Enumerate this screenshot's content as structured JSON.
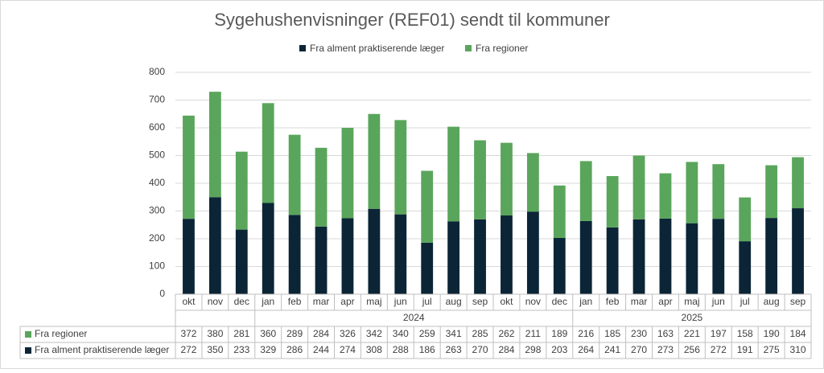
{
  "chart_data": {
    "type": "stacked_bar",
    "title": "Sygehushenvisninger (REF01) sendt til kommuner",
    "categories": [
      "okt",
      "nov",
      "dec",
      "jan",
      "feb",
      "mar",
      "apr",
      "maj",
      "jun",
      "jul",
      "aug",
      "sep",
      "okt",
      "nov",
      "dec",
      "jan",
      "feb",
      "mar",
      "apr",
      "maj",
      "jun",
      "jul",
      "aug",
      "sep"
    ],
    "category_groups": [
      {
        "label": null,
        "span": 3
      },
      {
        "label": "2024",
        "span": 12
      },
      {
        "label": "2025",
        "span": 9
      }
    ],
    "series": [
      {
        "name": "Fra alment praktiserende læger",
        "color": "#0b2536",
        "values": [
          272,
          350,
          233,
          329,
          286,
          244,
          274,
          308,
          288,
          186,
          263,
          270,
          284,
          298,
          203,
          264,
          241,
          270,
          273,
          256,
          272,
          191,
          275,
          310
        ]
      },
      {
        "name": "Fra regioner",
        "color": "#5aa55c",
        "values": [
          372,
          380,
          281,
          360,
          289,
          284,
          326,
          342,
          340,
          259,
          341,
          285,
          262,
          211,
          189,
          216,
          185,
          230,
          163,
          221,
          197,
          158,
          190,
          184
        ]
      }
    ],
    "ylim": [
      0,
      800
    ],
    "yticks": [
      0,
      100,
      200,
      300,
      400,
      500,
      600,
      700,
      800
    ],
    "grid": true,
    "legend": "top",
    "data_table": true
  }
}
